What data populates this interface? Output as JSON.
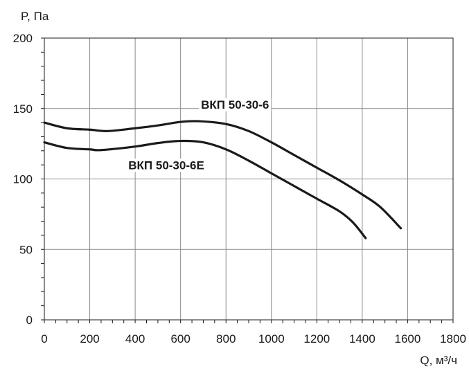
{
  "chart_data": {
    "type": "line",
    "title": "",
    "xlabel": "Q, м³/ч",
    "ylabel": "P, Па",
    "xlim": [
      0,
      1800
    ],
    "ylim": [
      0,
      200
    ],
    "x_ticks": [
      "0",
      "200",
      "400",
      "600",
      "800",
      "1000",
      "1200",
      "1400",
      "1600",
      "1800"
    ],
    "y_ticks": [
      "0",
      "50",
      "100",
      "150",
      "200"
    ],
    "grid": true,
    "series": [
      {
        "name": "ВКП 50-30-6",
        "x": [
          0,
          100,
          200,
          280,
          400,
          500,
          600,
          680,
          800,
          900,
          1000,
          1100,
          1200,
          1300,
          1400,
          1480,
          1570
        ],
        "y": [
          140,
          136,
          135,
          134,
          136,
          138,
          140.5,
          141,
          139,
          134,
          126,
          117,
          108,
          99,
          89,
          80,
          65
        ]
      },
      {
        "name": "ВКП 50-30-6Е",
        "x": [
          0,
          100,
          200,
          250,
          400,
          500,
          600,
          700,
          800,
          900,
          1000,
          1100,
          1200,
          1300,
          1360,
          1415
        ],
        "y": [
          126,
          122,
          121,
          120.5,
          123,
          125.5,
          127,
          126,
          121,
          113,
          104,
          95,
          86,
          77,
          69,
          58
        ]
      }
    ]
  }
}
